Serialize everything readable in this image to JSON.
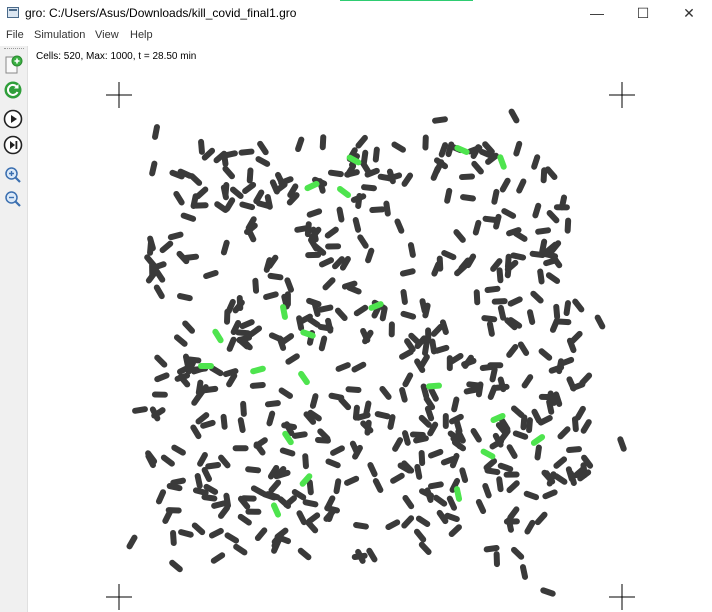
{
  "window": {
    "title": "gro: C:/Users/Asus/Downloads/kill_covid_final1.gro",
    "minimize_glyph": "—",
    "maximize_glyph": "☐",
    "close_glyph": "✕"
  },
  "menu": {
    "items": [
      "File",
      "Simulation",
      "View",
      "Help"
    ]
  },
  "toolbar": {
    "buttons": [
      {
        "name": "new-file-icon",
        "tooltip": ""
      },
      {
        "name": "reload-icon",
        "tooltip": ""
      },
      {
        "name": "play-icon",
        "tooltip": ""
      },
      {
        "name": "step-icon",
        "tooltip": ""
      },
      {
        "name": "zoom-in-icon",
        "tooltip": ""
      },
      {
        "name": "zoom-out-icon",
        "tooltip": ""
      }
    ]
  },
  "simulation": {
    "status": "Cells: 520, Max: 1000, t = 28.50 min",
    "cell_colors": {
      "normal": "#3a3a3a",
      "infected": "#4ee44e"
    }
  }
}
